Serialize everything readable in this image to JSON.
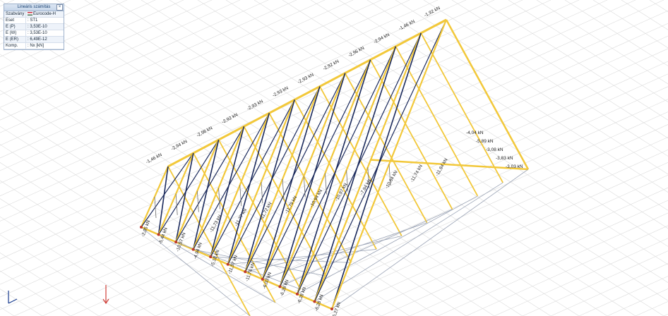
{
  "panel": {
    "title": "Lineáris számítás",
    "rows": [
      {
        "key": "Szabvány",
        "value": "Eurocode-H"
      },
      {
        "key": "Eset",
        "value": ": ST1"
      },
      {
        "key": "E (P)",
        "value": ": 3,53E-10"
      },
      {
        "key": "E (W)",
        "value": ": 3,53E-10"
      },
      {
        "key": "E (ER)",
        "value": ": 6,49E-12"
      },
      {
        "key": "Komp.",
        "value": ": Nx [kN]"
      }
    ]
  },
  "axes": {
    "z": "z",
    "y": "y",
    "x": "x"
  },
  "icons": {
    "close": "close-icon",
    "axis": "axis-triad-icon",
    "load": "load-arrow-icon"
  },
  "colors": {
    "member": "#f2c83a",
    "brace": "#1b2a5c",
    "grid": "#dcdcdc",
    "load": "#e9a24a"
  },
  "labels": {
    "top_chord": [
      "-1,46 kN",
      "-2,94 kN",
      "-2,96 kN",
      "-2,92 kN",
      "-2,93 kN",
      "-2,93 kN",
      "-2,93 kN",
      "-2,92 kN",
      "-2,96 kN",
      "-2,94 kN",
      "-1,46 kN",
      "-1,92 kN"
    ],
    "right_end": [
      "-4,04 kN",
      "-5,89 kN",
      "-3,08 kN",
      "-3,83 kN",
      "-3,03 kN"
    ],
    "front_row": [
      "-2,05 kN",
      "-5,44 kN",
      "-10,57 kN",
      "-4,94 kN",
      "-5,18 kN",
      "-11,57 kN",
      "-11,76 kN",
      "-6,03 kN",
      "-6,28 kN",
      "-6,28 kN",
      "-6,28 kN",
      "-6,27 kN"
    ],
    "mid_row": [
      "-11,73 kN",
      "-11,77 kN",
      "-11,72 kN",
      "-11,79 kN",
      "-10,94 kN",
      "-10,97 kN",
      "-7,94 kN",
      "-10,64 kN",
      "-11,74 kN",
      "-11,84 kN"
    ]
  }
}
